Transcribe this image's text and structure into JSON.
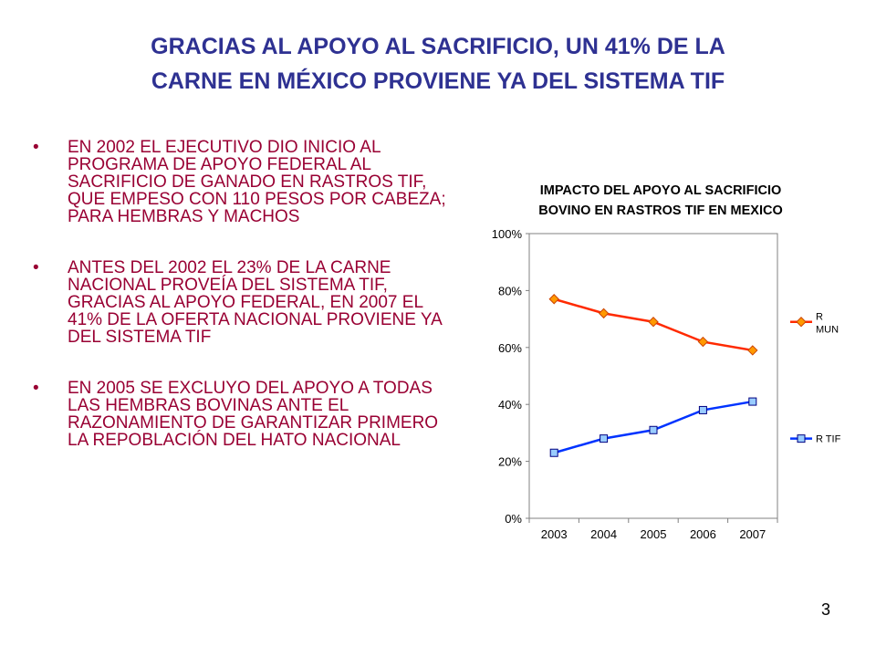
{
  "slide": {
    "title_line1": "GRACIAS AL APOYO AL SACRIFICIO, UN 41% DE LA",
    "title_line2": "CARNE EN MÉXICO PROVIENE YA DEL SISTEMA TIF",
    "bullet_marker": "•",
    "bullets": [
      "EN 2002 EL EJECUTIVO DIO INICIO AL PROGRAMA DE APOYO FEDERAL AL SACRIFICIO DE GANADO EN RASTROS TIF, QUE EMPESO CON 110 PESOS POR CABEZA; PARA HEMBRAS Y MACHOS",
      "ANTES DEL 2002 EL 23% DE LA CARNE NACIONAL PROVEÍA DEL SISTEMA TIF, GRACIAS AL APOYO FEDERAL, EN 2007 EL 41% DE LA OFERTA NACIONAL PROVIENE YA DEL SISTEMA TIF",
      "EN 2005 SE EXCLUYO DEL APOYO A TODAS LAS HEMBRAS BOVINAS ANTE EL RAZONAMIENTO DE GARANTIZAR PRIMERO LA REPOBLACIÓN DEL HATO NACIONAL"
    ],
    "page_number": "3",
    "colors": {
      "title": "#2e3192",
      "bullet_text": "#990033"
    }
  },
  "chart_data": {
    "type": "line",
    "title_line1": "IMPACTO DEL APOYO AL SACRIFICIO",
    "title_line2": "BOVINO EN RASTROS TIF EN MEXICO",
    "categories": [
      "2003",
      "2004",
      "2005",
      "2006",
      "2007"
    ],
    "y_ticks": [
      "0%",
      "20%",
      "40%",
      "60%",
      "80%",
      "100%"
    ],
    "ylim": [
      0,
      100
    ],
    "grid": false,
    "legend_position": "right",
    "series": [
      {
        "name_line1": "R",
        "name_line2": "MUN",
        "values": [
          77,
          72,
          69,
          62,
          59
        ],
        "color": "#ff2a00",
        "marker": "diamond",
        "marker_color": "#ff9900"
      },
      {
        "name_line1": "R TIF",
        "name_line2": "",
        "values": [
          23,
          28,
          31,
          38,
          41
        ],
        "color": "#0033ff",
        "marker": "square",
        "marker_color": "#99ccff"
      }
    ]
  }
}
